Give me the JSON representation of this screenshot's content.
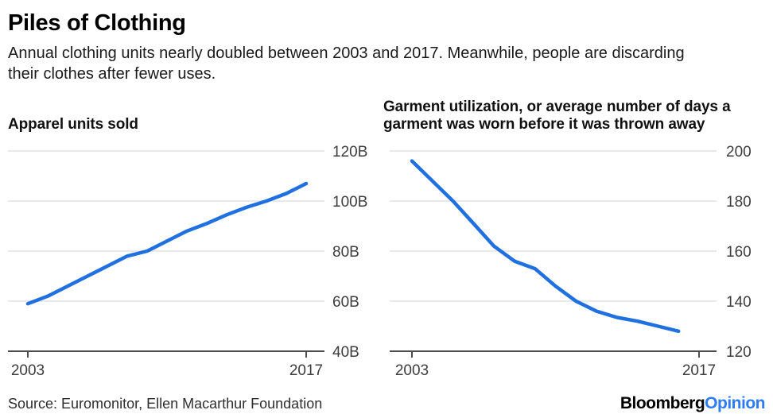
{
  "header": {
    "title": "Piles of Clothing",
    "subtitle": "Annual clothing units nearly doubled between 2003 and 2017. Meanwhile, people are discarding their clothes after fewer uses."
  },
  "chart_data": [
    {
      "type": "line",
      "title": "Apparel units sold",
      "x": [
        2003,
        2004,
        2005,
        2006,
        2007,
        2008,
        2009,
        2010,
        2011,
        2012,
        2013,
        2014,
        2015,
        2016,
        2017
      ],
      "values": [
        59,
        62,
        66,
        70,
        74,
        78,
        80,
        84,
        88,
        91,
        94.5,
        97.5,
        100,
        103,
        107
      ],
      "xlim": [
        2003,
        2017
      ],
      "ylim": [
        40,
        120
      ],
      "yticks": [
        120,
        100,
        80,
        60,
        40
      ],
      "ytick_labels": [
        "120B",
        "100B",
        "80B",
        "60B",
        "40B"
      ],
      "xticks": [
        2003,
        2017
      ],
      "xtick_labels": [
        "2003",
        "2017"
      ],
      "line_color": "#2070e0",
      "grid": true,
      "legend": "none"
    },
    {
      "type": "line",
      "title": "Garment utilization, or average number of days a garment was worn before it was thrown away",
      "x": [
        2003,
        2004,
        2005,
        2006,
        2007,
        2008,
        2009,
        2010,
        2011,
        2012,
        2013,
        2014,
        2015,
        2016
      ],
      "values": [
        196,
        188,
        180,
        171,
        162,
        156,
        153,
        146,
        140,
        136,
        133.5,
        132,
        130,
        128
      ],
      "xlim": [
        2003,
        2017
      ],
      "ylim": [
        120,
        200
      ],
      "yticks": [
        200,
        180,
        160,
        140,
        120
      ],
      "ytick_labels": [
        "200",
        "180",
        "160",
        "140",
        "120"
      ],
      "xticks": [
        2003,
        2017
      ],
      "xtick_labels": [
        "2003",
        "2017"
      ],
      "line_color": "#2070e0",
      "grid": true,
      "legend": "none"
    }
  ],
  "footer": {
    "source": "Source: Euromonitor, Ellen Macarthur Foundation",
    "brand": "Bloomberg",
    "brand_suffix": "Opinion",
    "brand_suffix_color": "#2e7bf2"
  }
}
